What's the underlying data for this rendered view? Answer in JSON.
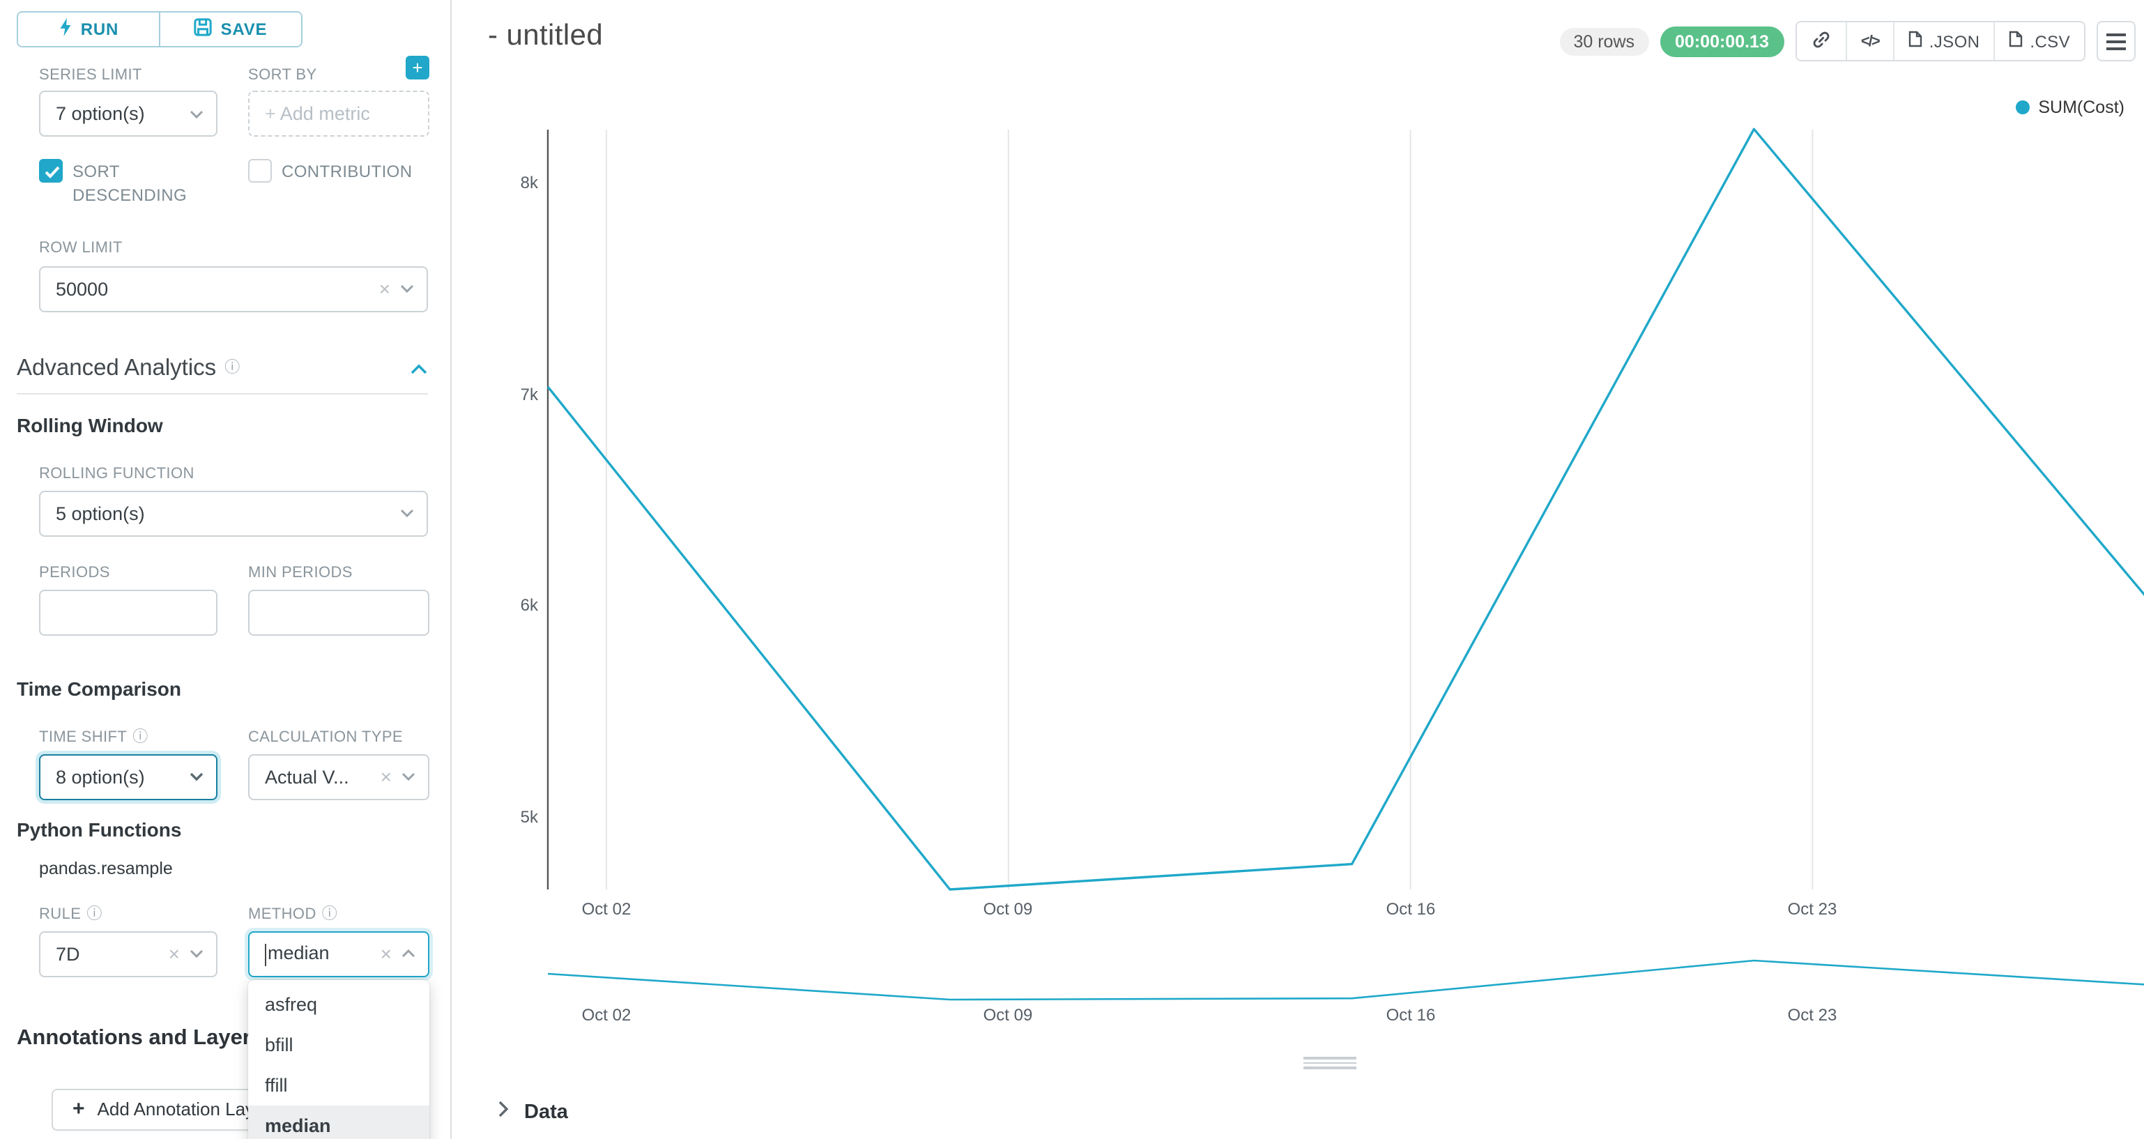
{
  "sidebar": {
    "run": "RUN",
    "save": "SAVE",
    "series_limit_label": "SERIES LIMIT",
    "series_limit_value": "7 option(s)",
    "sort_by_label": "SORT BY",
    "sort_by_placeholder": "Add metric",
    "sort_descending_label": "SORT DESCENDING",
    "contribution_label": "CONTRIBUTION",
    "row_limit_label": "ROW LIMIT",
    "row_limit_value": "50000",
    "advanced_analytics_title": "Advanced Analytics",
    "rolling_window_title": "Rolling Window",
    "rolling_function_label": "ROLLING FUNCTION",
    "rolling_function_value": "5 option(s)",
    "periods_label": "PERIODS",
    "min_periods_label": "MIN PERIODS",
    "time_comparison_title": "Time Comparison",
    "time_shift_label": "TIME SHIFT",
    "time_shift_value": "8 option(s)",
    "calculation_type_label": "CALCULATION TYPE",
    "calculation_type_value": "Actual V...",
    "python_functions_title": "Python Functions",
    "pandas_resample": "pandas.resample",
    "rule_label": "RULE",
    "rule_value": "7D",
    "method_label": "METHOD",
    "method_value": "median",
    "method_options": [
      "asfreq",
      "bfill",
      "ffill",
      "median"
    ],
    "method_selected": "median",
    "annotations_title": "Annotations and Layers",
    "add_annotation_label": "Add Annotation Layer"
  },
  "header": {
    "title": "- untitled",
    "rows_badge": "30 rows",
    "timer": "00:00:00.13",
    "json_button": ".JSON",
    "csv_button": ".CSV"
  },
  "chart_data": {
    "type": "line",
    "title": "- untitled",
    "legend": [
      {
        "label": "SUM(Cost)",
        "color": "#1fa8c9"
      }
    ],
    "x": [
      "Oct 01",
      "Oct 08",
      "Oct 15",
      "Oct 22",
      "Oct 29"
    ],
    "series": [
      {
        "name": "SUM(Cost)",
        "values": [
          7040,
          4660,
          4780,
          8260,
          5990
        ]
      }
    ],
    "x_tick_labels": [
      "Oct 02",
      "Oct 09",
      "Oct 16",
      "Oct 23"
    ],
    "y_tick_labels": [
      "8k",
      "7k",
      "6k",
      "5k"
    ],
    "xlabel": "",
    "ylabel": "",
    "ylim": [
      4500,
      8500
    ],
    "grid": "vertical",
    "legend_position": "top-right",
    "has_mini_preview": true
  },
  "data_panel": {
    "label": "Data"
  }
}
